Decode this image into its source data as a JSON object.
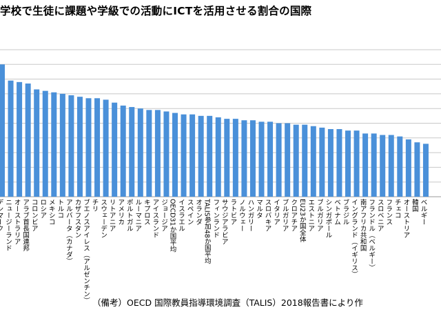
{
  "title": "学校で生徒に課題や学級での活動にICTを活用させる割合の国際",
  "source": "（備考）OECD 国際教員指導環境調査（TALIS）2018報告書により作",
  "chart_data": {
    "type": "bar",
    "title": "学校で生徒に課題や学級での活動にICTを活用させる割合の国際",
    "xlabel": "",
    "ylabel": "",
    "ylim": [
      0,
      100
    ],
    "grid": true,
    "bar_color": "#4a90d9",
    "grid_color": "#c8c8c8",
    "categories": [
      "デンマーク",
      "ニュージーランド",
      "オーストラリア",
      "アラブ首長国連邦",
      "コロンビア",
      "ロシア",
      "メキシコ",
      "トルコ",
      "アルバータ（カナダ）",
      "カザフスタン",
      "ブエノスアイレス（アルゼンチン）",
      "チリ",
      "スウェーデン",
      "リトアニア",
      "アメリカ",
      "ポルトガル",
      "ルーマニア",
      "キプロス",
      "アイスランド",
      "ジョージア",
      "OECD31か国平均",
      "イスラエル",
      "スペイン",
      "オランダ",
      "TALIS参加48か国平均",
      "フィンランド",
      "サウジアラビア",
      "ラトビア",
      "ノルウェー",
      "ハンガリー",
      "マルタ",
      "スロバキア",
      "イタリア",
      "ブルガリア",
      "クロアチア",
      "EU23か国全体",
      "エストニア",
      "ブルガリア",
      "シンガポール",
      "ベトナム",
      "ブラジル",
      "イングランド（イギリス）",
      "南アフリカ共和国",
      "フランドル（ベルギー）",
      "スロベニア",
      "フランス",
      "チェコ",
      "オーストリア",
      "韓国",
      "ベルギー"
    ],
    "values": [
      90,
      79,
      78,
      77,
      73,
      72,
      71,
      70,
      69,
      68,
      67,
      67,
      66,
      64,
      62,
      61,
      60,
      59,
      59,
      58,
      57,
      56,
      56,
      55,
      55,
      54,
      53,
      53,
      52,
      52,
      51,
      51,
      50,
      50,
      49,
      49,
      48,
      47,
      46,
      46,
      45,
      45,
      43,
      43,
      42,
      42,
      41,
      39,
      37,
      36
    ]
  }
}
